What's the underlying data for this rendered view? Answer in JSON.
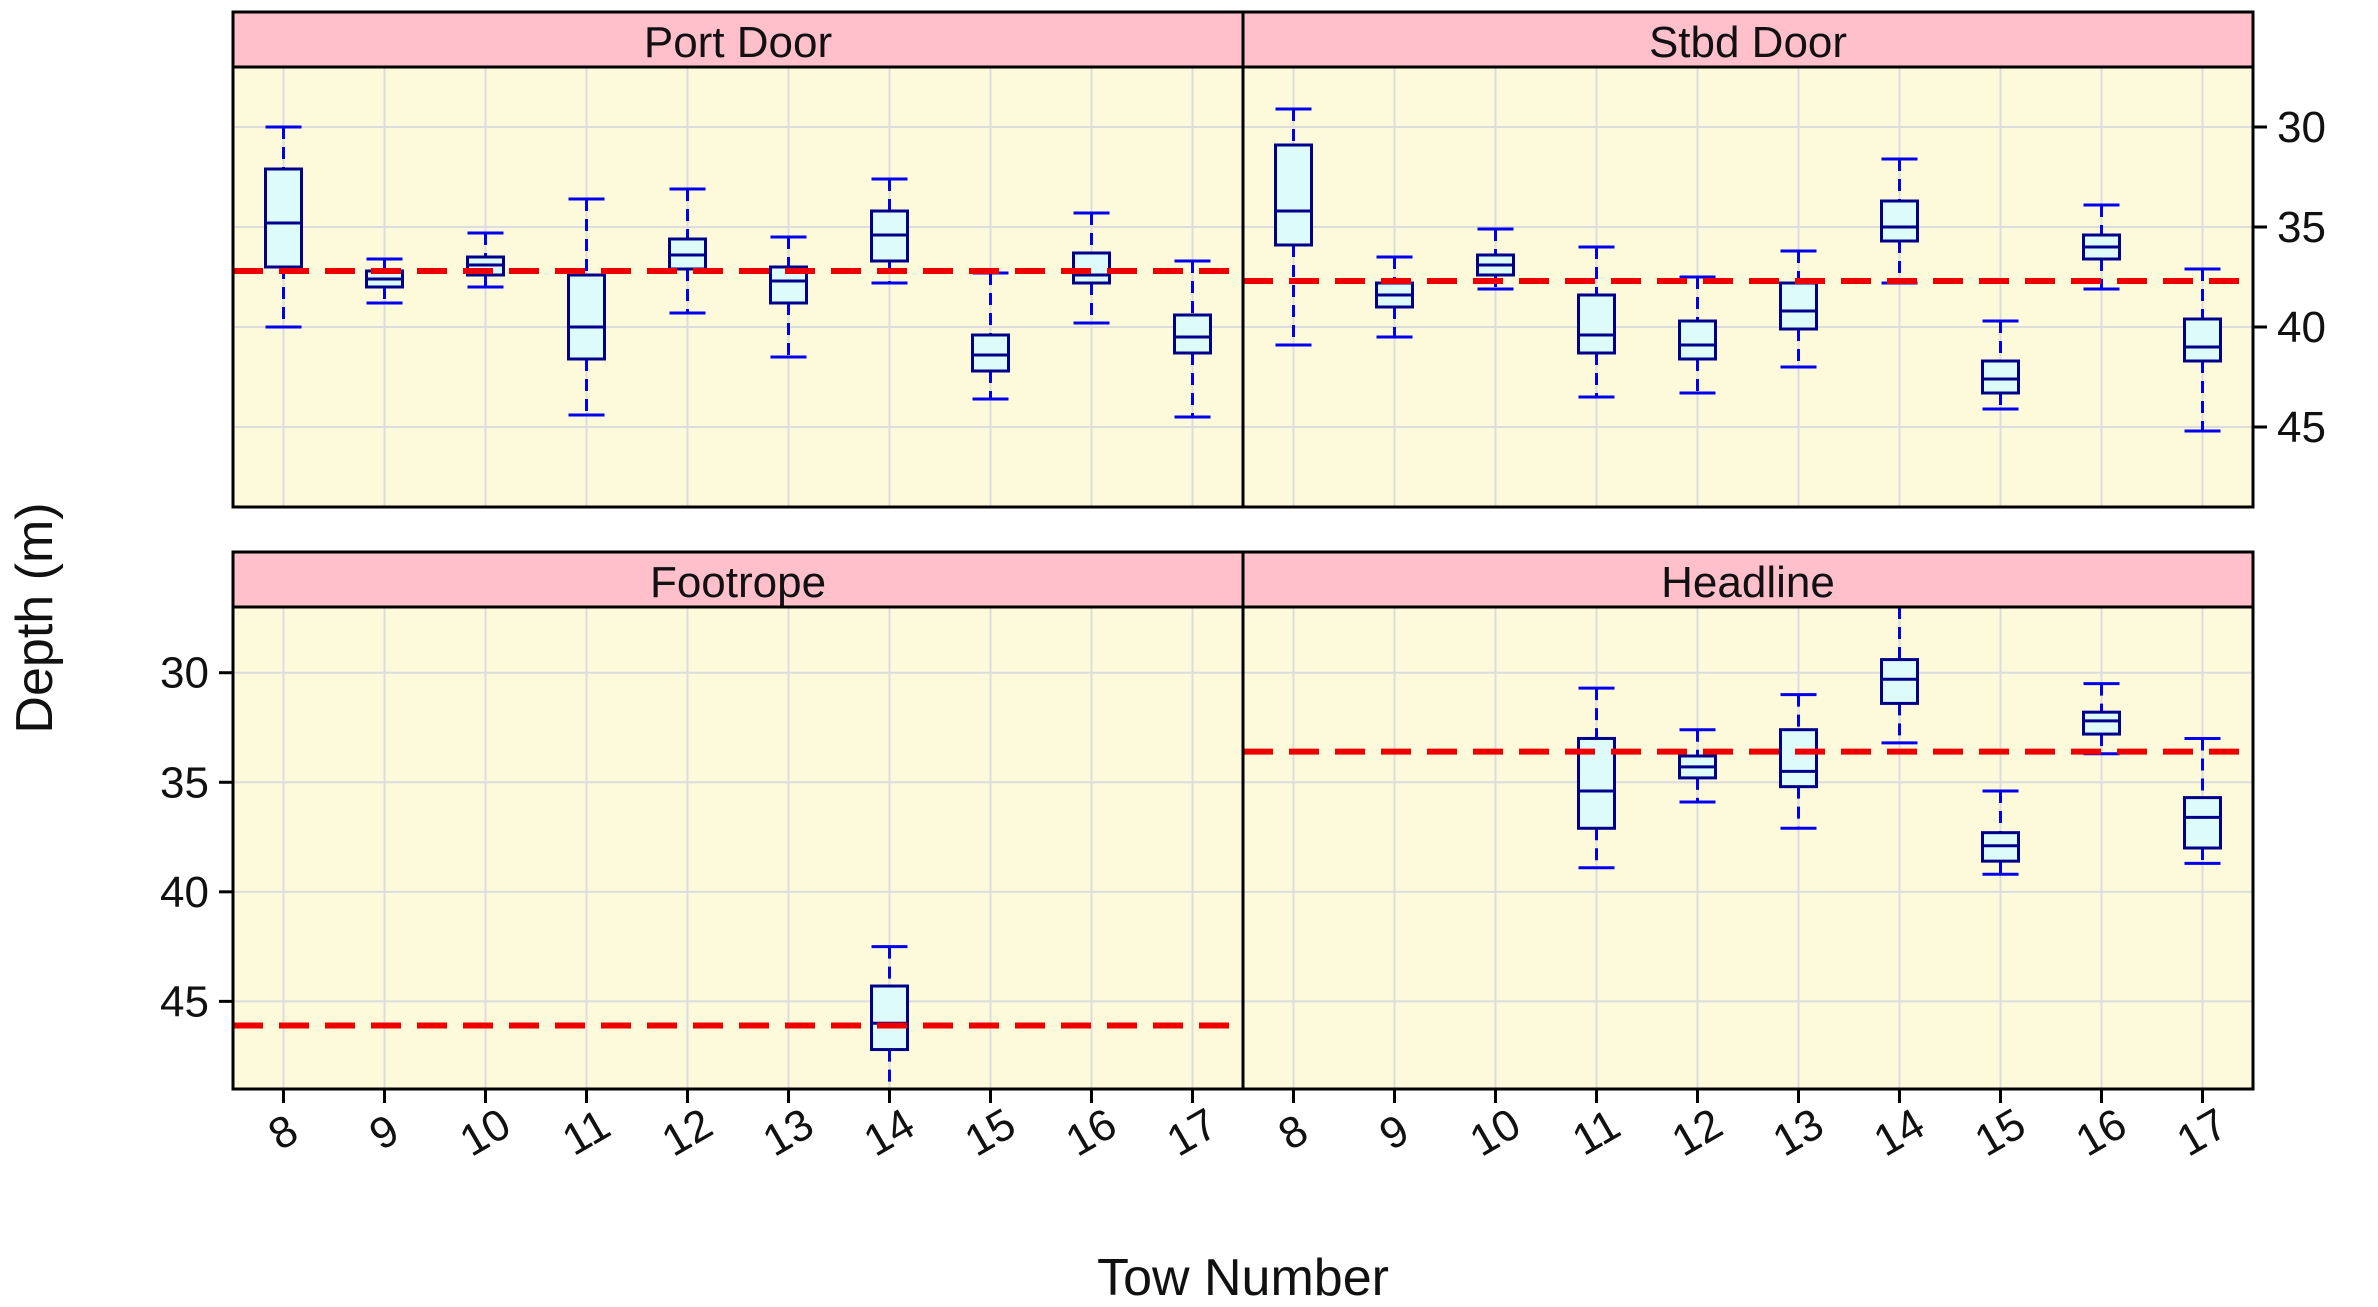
{
  "chart_data": {
    "type": "box",
    "title": "",
    "xlabel": "Tow Number",
    "ylabel": "Depth (m)",
    "ylim": [
      49,
      27
    ],
    "y_reversed": true,
    "yticks": [
      30,
      35,
      40,
      45
    ],
    "categories": [
      "8",
      "9",
      "10",
      "11",
      "12",
      "13",
      "14",
      "15",
      "16",
      "17"
    ],
    "grid": true,
    "colors": {
      "strip": "#ffc0cb",
      "panel_bg": "#fdfadc",
      "box_fill": "#ddfbfb",
      "box_stroke": "#00008b",
      "whisker": "#0000ee",
      "reference_line": "#ee0000",
      "grid": "#dcdcdc"
    },
    "panels": [
      {
        "name": "Port Door",
        "reference_line": 37.2,
        "boxes": [
          {
            "tow": "8",
            "min": 30.0,
            "q1": 32.1,
            "median": 34.8,
            "q3": 37.0,
            "max": 40.0
          },
          {
            "tow": "9",
            "min": 36.6,
            "q1": 37.2,
            "median": 37.6,
            "q3": 38.0,
            "max": 38.8
          },
          {
            "tow": "10",
            "min": 35.3,
            "q1": 36.5,
            "median": 36.9,
            "q3": 37.4,
            "max": 38.0
          },
          {
            "tow": "11",
            "min": 33.6,
            "q1": 37.4,
            "median": 40.0,
            "q3": 41.6,
            "max": 44.4
          },
          {
            "tow": "12",
            "min": 33.1,
            "q1": 35.6,
            "median": 36.4,
            "q3": 37.1,
            "max": 39.3
          },
          {
            "tow": "13",
            "min": 35.5,
            "q1": 37.0,
            "median": 37.7,
            "q3": 38.8,
            "max": 41.5
          },
          {
            "tow": "14",
            "min": 32.6,
            "q1": 34.2,
            "median": 35.4,
            "q3": 36.7,
            "max": 37.8
          },
          {
            "tow": "15",
            "min": 37.3,
            "q1": 40.4,
            "median": 41.4,
            "q3": 42.2,
            "max": 43.6
          },
          {
            "tow": "16",
            "min": 34.3,
            "q1": 36.3,
            "median": 37.4,
            "q3": 37.8,
            "max": 39.8
          },
          {
            "tow": "17",
            "min": 36.7,
            "q1": 39.4,
            "median": 40.5,
            "q3": 41.3,
            "max": 44.5
          }
        ]
      },
      {
        "name": "Stbd Door",
        "reference_line": 37.7,
        "boxes": [
          {
            "tow": "8",
            "min": 29.1,
            "q1": 30.9,
            "median": 34.2,
            "q3": 35.9,
            "max": 40.9
          },
          {
            "tow": "9",
            "min": 36.5,
            "q1": 37.8,
            "median": 38.4,
            "q3": 39.0,
            "max": 40.5
          },
          {
            "tow": "10",
            "min": 35.1,
            "q1": 36.4,
            "median": 36.9,
            "q3": 37.4,
            "max": 38.1
          },
          {
            "tow": "11",
            "min": 36.0,
            "q1": 38.4,
            "median": 40.4,
            "q3": 41.3,
            "max": 43.5
          },
          {
            "tow": "12",
            "min": 37.5,
            "q1": 39.7,
            "median": 40.9,
            "q3": 41.6,
            "max": 43.3
          },
          {
            "tow": "13",
            "min": 36.2,
            "q1": 37.8,
            "median": 39.2,
            "q3": 40.1,
            "max": 42.0
          },
          {
            "tow": "14",
            "min": 31.6,
            "q1": 33.7,
            "median": 35.0,
            "q3": 35.7,
            "max": 37.8
          },
          {
            "tow": "15",
            "min": 39.7,
            "q1": 41.7,
            "median": 42.6,
            "q3": 43.3,
            "max": 44.1
          },
          {
            "tow": "16",
            "min": 33.9,
            "q1": 35.4,
            "median": 36.0,
            "q3": 36.6,
            "max": 38.1
          },
          {
            "tow": "17",
            "min": 37.1,
            "q1": 39.6,
            "median": 41.0,
            "q3": 41.7,
            "max": 45.2
          }
        ]
      },
      {
        "name": "Footrope",
        "reference_line": 46.1,
        "boxes": [
          {
            "tow": "14",
            "min": 42.5,
            "q1": 44.3,
            "median": 46.0,
            "q3": 47.2,
            "max": 49.0
          }
        ]
      },
      {
        "name": "Headline",
        "reference_line": 33.6,
        "boxes": [
          {
            "tow": "11",
            "min": 30.7,
            "q1": 33.0,
            "median": 35.4,
            "q3": 37.1,
            "max": 38.9
          },
          {
            "tow": "12",
            "min": 32.6,
            "q1": 33.8,
            "median": 34.3,
            "q3": 34.8,
            "max": 35.9
          },
          {
            "tow": "13",
            "min": 31.0,
            "q1": 32.6,
            "median": 34.5,
            "q3": 35.2,
            "max": 37.1
          },
          {
            "tow": "14",
            "min": 27.0,
            "q1": 29.4,
            "median": 30.3,
            "q3": 31.4,
            "max": 33.2
          },
          {
            "tow": "15",
            "min": 35.4,
            "q1": 37.3,
            "median": 37.9,
            "q3": 38.6,
            "max": 39.2
          },
          {
            "tow": "16",
            "min": 30.5,
            "q1": 31.8,
            "median": 32.2,
            "q3": 32.8,
            "max": 33.7
          },
          {
            "tow": "17",
            "min": 33.0,
            "q1": 35.7,
            "median": 36.6,
            "q3": 38.0,
            "max": 38.7
          }
        ]
      }
    ]
  }
}
